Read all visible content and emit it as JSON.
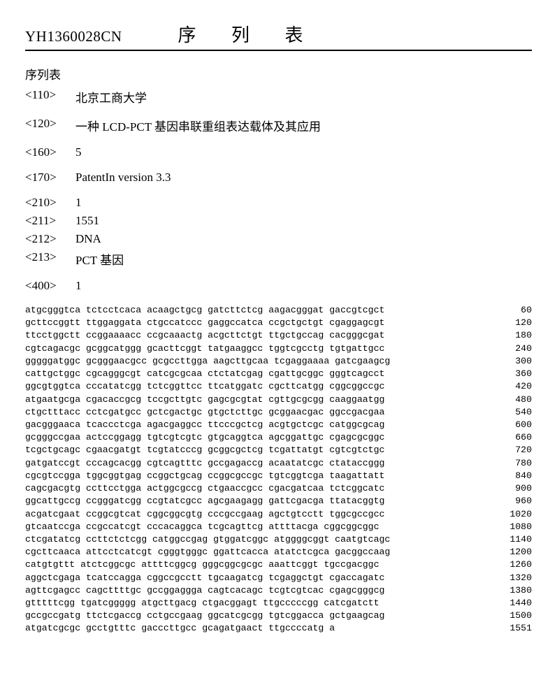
{
  "header": {
    "doc_id": "YH1360028CN",
    "title": "序 列 表"
  },
  "subtitle": "序列表",
  "meta": {
    "tag_110": "<110>",
    "val_110": "北京工商大学",
    "tag_120": "<120>",
    "val_120": "一种 LCD-PCT 基因串联重组表达载体及其应用",
    "tag_160": "<160>",
    "val_160": "5",
    "tag_170": "<170>",
    "val_170": "PatentIn version 3.3",
    "tag_210": "<210>",
    "val_210": "1",
    "tag_211": "<211>",
    "val_211": "1551",
    "tag_212": "<212>",
    "val_212": "DNA",
    "tag_213": "<213>",
    "val_213": "PCT 基因",
    "tag_400": "<400>",
    "val_400": "1"
  },
  "sequence": {
    "rows": [
      {
        "seq": "atgcgggtca tctcctcaca acaagctgcg gatcttctcg aagacgggat gaccgtcgct",
        "num": "60"
      },
      {
        "seq": "gcttccggtt ttggaggata ctgccatccc gaggccatca ccgctgctgt cgaggagcgt",
        "num": "120"
      },
      {
        "seq": "ttcctggctt ccggaaaacc ccgcaaactg acgcttctgt ttgctgccag cacgggcgat",
        "num": "180"
      },
      {
        "seq": "cgtcagacgc gcggcatggg gcacttcggt tatgaaggcc tggtcgcctg tgtgattgcc",
        "num": "240"
      },
      {
        "seq": "gggggatggc gcgggaacgcc gcgccttgga aagcttgcaa tcgaggaaaa gatcgaagcg",
        "num": "300"
      },
      {
        "seq": "cattgctggc cgcagggcgt catcgcgcaa ctctatcgag cgattgcggc gggtcagcct",
        "num": "360"
      },
      {
        "seq": "ggcgtggtca cccatatcgg tctcggttcc ttcatggatc cgcttcatgg cggcggccgc",
        "num": "420"
      },
      {
        "seq": "atgaatgcga cgacaccgcg tccgcttgtc gagcgcgtat cgttgcgcgg caaggaatgg",
        "num": "480"
      },
      {
        "seq": "ctgctttacc cctcgatgcc gctcgactgc gtgctcttgc gcggaacgac ggccgacgaa",
        "num": "540"
      },
      {
        "seq": "gacgggaaca tcaccctcga agacgaggcc ttcccgctcg acgtgctcgc catggcgcag",
        "num": "600"
      },
      {
        "seq": "gcgggccgaa actccggagg tgtcgtcgtc gtgcaggtca agcggattgc cgagcgcggc",
        "num": "660"
      },
      {
        "seq": "tcgctgcagc cgaacgatgt tcgtatcccg gcggcgctcg tcgattatgt cgtcgtctgc",
        "num": "720"
      },
      {
        "seq": "gatgatccgt cccagcacgg cgtcagtttc gccgagaccg acaatatcgc ctataccggg",
        "num": "780"
      },
      {
        "seq": "cgcgtccgga tggcggtgag ccggctgcag ccggcgccgc tgtcggtcga taagattatt",
        "num": "840"
      },
      {
        "seq": "cagcgacgtg ccttcctgga actggcgccg ctgaaccgcc cgacgatcaa tctcggcatc",
        "num": "900"
      },
      {
        "seq": "ggcattgccg ccgggatcgg ccgtatcgcc agcgaagagg gattcgacga ttatacggtg",
        "num": "960"
      },
      {
        "seq": "acgatcgaat ccggcgtcat cggcggcgtg cccgccgaag agctgtcctt tggcgccgcc",
        "num": "1020"
      },
      {
        "seq": "gtcaatccga ccgccatcgt cccacaggca tcgcagttcg attttacga cggcggcggc",
        "num": "1080"
      },
      {
        "seq": "ctcgatatcg ccttctctcgg catggccgag gtggatcggc atggggcggt caatgtcagc",
        "num": "1140"
      },
      {
        "seq": "cgcttcaaca attcctcatcgt cgggtgggc ggattcacca atatctcgca gacggccaag",
        "num": "1200"
      },
      {
        "seq": "catgtgttt atctcggcgc attttcggcg gggcggcgcgc aaattcggt tgccgacggc",
        "num": "1260"
      },
      {
        "seq": "aggctcgaga tcatccagga cggccgcctt tgcaagatcg tcgaggctgt cgaccagatc",
        "num": "1320"
      },
      {
        "seq": "agttcgagcc cagcttttgc gccggaggga cagtcacagc tcgtcgtcac cgagcgggcg",
        "num": "1380"
      },
      {
        "seq": "gtttttcgg tgatcggggg atgcttgacg ctgacggagt ttgcccccgg catcgatctt",
        "num": "1440"
      },
      {
        "seq": "gccgccgatg ttctcgaccg cctgccgaag ggcatcgcgg tgtcggacca gctgaagcag",
        "num": "1500"
      },
      {
        "seq": "atgatcgcgc gcctgtttc gacccttgcc gcagatgaact ttgccccatg a",
        "num": "1551"
      }
    ]
  }
}
